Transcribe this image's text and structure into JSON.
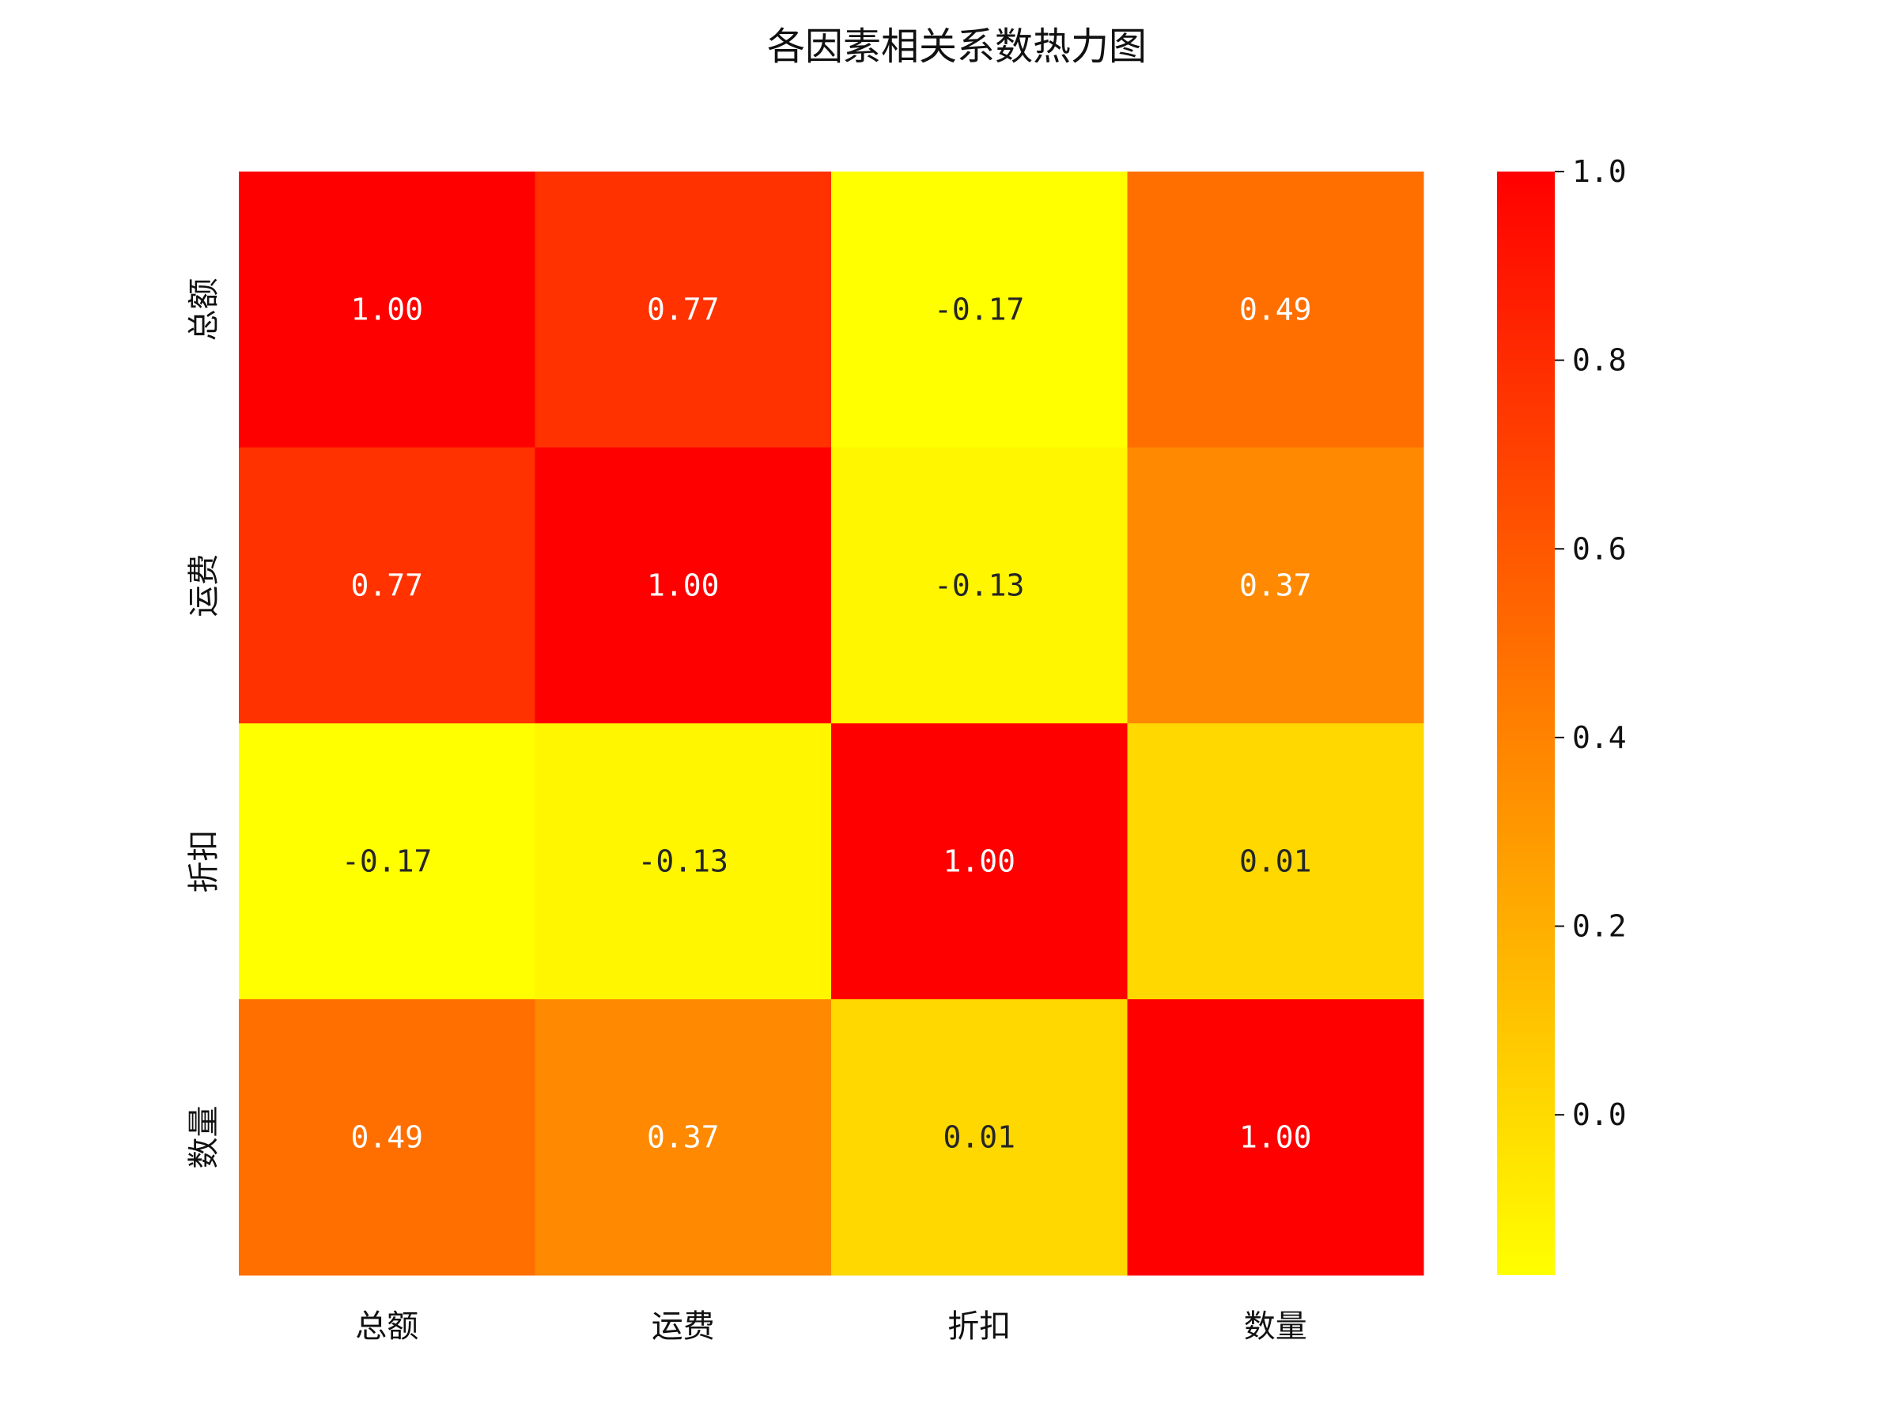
{
  "chart_data": {
    "type": "heatmap",
    "title": "各因素相关系数热力图",
    "x_labels": [
      "总额",
      "运费",
      "折扣",
      "数量"
    ],
    "y_labels": [
      "总额",
      "运费",
      "折扣",
      "数量"
    ],
    "values": [
      [
        1.0,
        0.77,
        -0.17,
        0.49
      ],
      [
        0.77,
        1.0,
        -0.13,
        0.37
      ],
      [
        -0.17,
        -0.13,
        1.0,
        0.01
      ],
      [
        0.49,
        0.37,
        0.01,
        1.0
      ]
    ],
    "cell_labels": [
      [
        "1.00",
        "0.77",
        "-0.17",
        "0.49"
      ],
      [
        "0.77",
        "1.00",
        "-0.13",
        "0.37"
      ],
      [
        "-0.17",
        "-0.13",
        "1.00",
        "0.01"
      ],
      [
        "0.49",
        "0.37",
        "0.01",
        "1.00"
      ]
    ],
    "colormap": "autumn_r",
    "colormap_colors": [
      "#ffff00",
      "#ff0000"
    ],
    "vmin": -0.17,
    "vmax": 1.0,
    "colorbar": {
      "ticks": [
        0.0,
        0.2,
        0.4,
        0.6,
        0.8,
        1.0
      ],
      "tick_labels": [
        "0.0",
        "0.2",
        "0.4",
        "0.6",
        "0.8",
        "1.0"
      ],
      "placement": "right"
    }
  }
}
